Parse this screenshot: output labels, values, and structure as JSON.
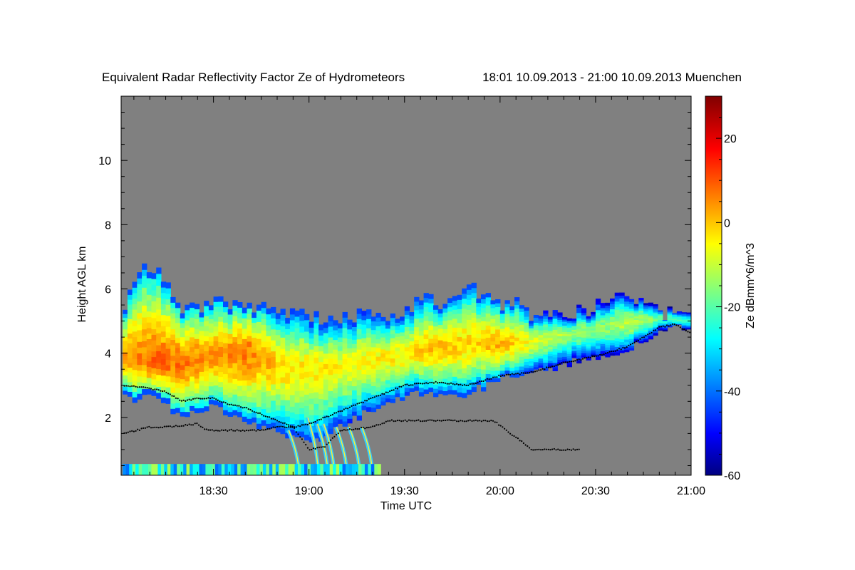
{
  "chart_data": {
    "type": "heatmap",
    "title": "Equivalent Radar Reflectivity Factor Ze of Hydrometeors",
    "subtitle": "18:01 10.09.2013 - 21:00 10.09.2013 Muenchen",
    "xlabel": "Time UTC",
    "ylabel": "Height AGL km",
    "colorbar_label": "Ze dBmm^6/m^3",
    "x_start": "18:01",
    "x_end": "21:00",
    "xlim": [
      "18:01",
      "21:00"
    ],
    "x_ticks": [
      "18:30",
      "19:00",
      "19:30",
      "20:00",
      "20:30",
      "21:00"
    ],
    "ylim": [
      0.2,
      12
    ],
    "y_ticks": [
      2,
      4,
      6,
      8,
      10
    ],
    "colorbar_range": [
      -60,
      30
    ],
    "colorbar_ticks": [
      20,
      0,
      -20,
      -40,
      -60
    ],
    "colormap": "jet",
    "background_color": "#808080",
    "echo_top_km": [
      {
        "t": "18:02",
        "h": 5.6
      },
      {
        "t": "18:05",
        "h": 6.1
      },
      {
        "t": "18:08",
        "h": 6.7
      },
      {
        "t": "18:10",
        "h": 6.2
      },
      {
        "t": "18:12",
        "h": 6.6
      },
      {
        "t": "18:16",
        "h": 6.0
      },
      {
        "t": "18:20",
        "h": 5.3
      },
      {
        "t": "18:25",
        "h": 5.4
      },
      {
        "t": "18:30",
        "h": 5.6
      },
      {
        "t": "18:40",
        "h": 5.5
      },
      {
        "t": "18:50",
        "h": 5.3
      },
      {
        "t": "19:00",
        "h": 5.1
      },
      {
        "t": "19:10",
        "h": 5.1
      },
      {
        "t": "19:20",
        "h": 5.2
      },
      {
        "t": "19:30",
        "h": 5.3
      },
      {
        "t": "19:35",
        "h": 5.8
      },
      {
        "t": "19:40",
        "h": 5.4
      },
      {
        "t": "19:45",
        "h": 5.6
      },
      {
        "t": "19:50",
        "h": 6.0
      },
      {
        "t": "19:55",
        "h": 5.8
      },
      {
        "t": "20:00",
        "h": 5.5
      },
      {
        "t": "20:05",
        "h": 5.6
      },
      {
        "t": "20:10",
        "h": 5.1
      },
      {
        "t": "20:15",
        "h": 5.1
      },
      {
        "t": "20:20",
        "h": 5.3
      },
      {
        "t": "20:25",
        "h": 5.3
      },
      {
        "t": "20:30",
        "h": 5.5
      },
      {
        "t": "20:35",
        "h": 5.9
      },
      {
        "t": "20:40",
        "h": 5.8
      },
      {
        "t": "20:45",
        "h": 5.6
      },
      {
        "t": "20:50",
        "h": 5.2
      },
      {
        "t": "20:55",
        "h": 5.4
      },
      {
        "t": "21:00",
        "h": 5.5
      }
    ],
    "echo_base_km": [
      {
        "t": "18:02",
        "h": 2.6
      },
      {
        "t": "18:10",
        "h": 2.6
      },
      {
        "t": "18:15",
        "h": 2.3
      },
      {
        "t": "18:20",
        "h": 2.1
      },
      {
        "t": "18:25",
        "h": 2.3
      },
      {
        "t": "18:30",
        "h": 2.3
      },
      {
        "t": "18:35",
        "h": 2.1
      },
      {
        "t": "18:40",
        "h": 1.9
      },
      {
        "t": "18:45",
        "h": 1.7
      },
      {
        "t": "18:50",
        "h": 1.6
      },
      {
        "t": "18:55",
        "h": 1.4
      },
      {
        "t": "19:00",
        "h": 1.2
      },
      {
        "t": "19:05",
        "h": 1.5
      },
      {
        "t": "19:10",
        "h": 1.8
      },
      {
        "t": "19:15",
        "h": 2.0
      },
      {
        "t": "19:20",
        "h": 2.3
      },
      {
        "t": "19:25",
        "h": 2.5
      },
      {
        "t": "19:30",
        "h": 2.7
      },
      {
        "t": "19:35",
        "h": 2.8
      },
      {
        "t": "19:40",
        "h": 2.6
      },
      {
        "t": "19:45",
        "h": 2.6
      },
      {
        "t": "19:50",
        "h": 2.8
      },
      {
        "t": "19:55",
        "h": 3.0
      },
      {
        "t": "20:00",
        "h": 3.2
      },
      {
        "t": "20:05",
        "h": 3.4
      },
      {
        "t": "20:10",
        "h": 3.5
      },
      {
        "t": "20:15",
        "h": 3.5
      },
      {
        "t": "20:20",
        "h": 3.7
      },
      {
        "t": "20:25",
        "h": 3.8
      },
      {
        "t": "20:30",
        "h": 3.8
      },
      {
        "t": "20:35",
        "h": 3.9
      },
      {
        "t": "20:40",
        "h": 4.2
      },
      {
        "t": "20:45",
        "h": 4.5
      },
      {
        "t": "20:50",
        "h": 4.8
      },
      {
        "t": "20:55",
        "h": 4.9
      },
      {
        "t": "21:00",
        "h": 4.7
      }
    ],
    "core_center_km": [
      {
        "t": "18:02",
        "h": 3.9
      },
      {
        "t": "18:10",
        "h": 3.7
      },
      {
        "t": "18:20",
        "h": 3.7
      },
      {
        "t": "18:30",
        "h": 3.9
      },
      {
        "t": "18:40",
        "h": 4.1
      },
      {
        "t": "18:50",
        "h": 3.6
      },
      {
        "t": "19:00",
        "h": 3.5
      },
      {
        "t": "19:10",
        "h": 3.6
      },
      {
        "t": "19:20",
        "h": 3.8
      },
      {
        "t": "19:30",
        "h": 4.0
      },
      {
        "t": "19:40",
        "h": 4.2
      },
      {
        "t": "19:50",
        "h": 4.3
      },
      {
        "t": "20:00",
        "h": 4.3
      },
      {
        "t": "20:10",
        "h": 4.4
      },
      {
        "t": "20:20",
        "h": 4.6
      },
      {
        "t": "20:30",
        "h": 4.8
      },
      {
        "t": "20:40",
        "h": 5.0
      },
      {
        "t": "20:50",
        "h": 5.1
      },
      {
        "t": "21:00",
        "h": 5.0
      }
    ],
    "core_peak_dbz": [
      {
        "t": "18:02",
        "v": 5
      },
      {
        "t": "18:10",
        "v": 10
      },
      {
        "t": "18:20",
        "v": 8
      },
      {
        "t": "18:30",
        "v": 6
      },
      {
        "t": "18:40",
        "v": 8
      },
      {
        "t": "18:50",
        "v": 0
      },
      {
        "t": "19:00",
        "v": -2
      },
      {
        "t": "19:10",
        "v": -4
      },
      {
        "t": "19:20",
        "v": -3
      },
      {
        "t": "19:30",
        "v": -2
      },
      {
        "t": "19:40",
        "v": 2
      },
      {
        "t": "19:50",
        "v": 0
      },
      {
        "t": "20:00",
        "v": 4
      },
      {
        "t": "20:10",
        "v": -6
      },
      {
        "t": "20:20",
        "v": -12
      },
      {
        "t": "20:30",
        "v": -14
      },
      {
        "t": "20:40",
        "v": -8
      },
      {
        "t": "20:50",
        "v": -18
      },
      {
        "t": "21:00",
        "v": -22
      }
    ],
    "fallstreaks": [
      {
        "t": "18:57",
        "top_km": 1.6,
        "bottom_km": 0.2
      },
      {
        "t": "19:03",
        "top_km": 2.0,
        "bottom_km": 0.2
      },
      {
        "t": "19:06",
        "top_km": 1.8,
        "bottom_km": 0.2
      },
      {
        "t": "19:08",
        "top_km": 1.8,
        "bottom_km": 0.2
      },
      {
        "t": "19:12",
        "top_km": 1.7,
        "bottom_km": 0.2
      },
      {
        "t": "19:16",
        "top_km": 1.7,
        "bottom_km": 0.2
      },
      {
        "t": "19:20",
        "top_km": 1.7,
        "bottom_km": 0.2
      }
    ],
    "cloud_base_km": [
      {
        "t": "18:02",
        "h": 3.0
      },
      {
        "t": "18:10",
        "h": 2.9
      },
      {
        "t": "18:15",
        "h": 2.8
      },
      {
        "t": "18:20",
        "h": 2.5
      },
      {
        "t": "18:25",
        "h": 2.6
      },
      {
        "t": "18:30",
        "h": 2.6
      },
      {
        "t": "18:35",
        "h": 2.4
      },
      {
        "t": "18:40",
        "h": 2.3
      },
      {
        "t": "18:45",
        "h": 2.1
      },
      {
        "t": "18:50",
        "h": 1.9
      },
      {
        "t": "18:55",
        "h": 1.7
      },
      {
        "t": "19:00",
        "h": 1.8
      },
      {
        "t": "19:05",
        "h": 2.0
      },
      {
        "t": "19:10",
        "h": 2.2
      },
      {
        "t": "19:15",
        "h": 2.4
      },
      {
        "t": "19:20",
        "h": 2.6
      },
      {
        "t": "19:25",
        "h": 2.8
      },
      {
        "t": "19:30",
        "h": 3.0
      },
      {
        "t": "19:40",
        "h": 3.1
      },
      {
        "t": "19:50",
        "h": 3.0
      },
      {
        "t": "20:00",
        "h": 3.3
      },
      {
        "t": "20:10",
        "h": 3.4
      },
      {
        "t": "20:20",
        "h": 3.7
      },
      {
        "t": "20:30",
        "h": 3.9
      },
      {
        "t": "20:40",
        "h": 4.2
      },
      {
        "t": "20:50",
        "h": 4.8
      },
      {
        "t": "20:55",
        "h": 4.9
      },
      {
        "t": "21:00",
        "h": 4.6
      }
    ],
    "low_cloud_base_km": [
      {
        "t": "18:02",
        "h": 1.5
      },
      {
        "t": "18:10",
        "h": 1.7
      },
      {
        "t": "18:15",
        "h": 1.7
      },
      {
        "t": "18:25",
        "h": 1.8
      },
      {
        "t": "18:28",
        "h": 1.6
      },
      {
        "t": "18:45",
        "h": 1.6
      },
      {
        "t": "18:50",
        "h": 1.7
      },
      {
        "t": "18:55",
        "h": 1.7
      },
      {
        "t": "19:00",
        "h": 1.0
      },
      {
        "t": "19:05",
        "h": 1.1
      },
      {
        "t": "19:10",
        "h": 1.6
      },
      {
        "t": "19:20",
        "h": 1.7
      },
      {
        "t": "19:25",
        "h": 1.9
      },
      {
        "t": "19:40",
        "h": 1.9
      },
      {
        "t": "19:58",
        "h": 1.9
      },
      {
        "t": "20:10",
        "h": 1.0
      },
      {
        "t": "20:20",
        "h": 1.0
      },
      {
        "t": "20:25",
        "h": 1.0
      }
    ]
  }
}
